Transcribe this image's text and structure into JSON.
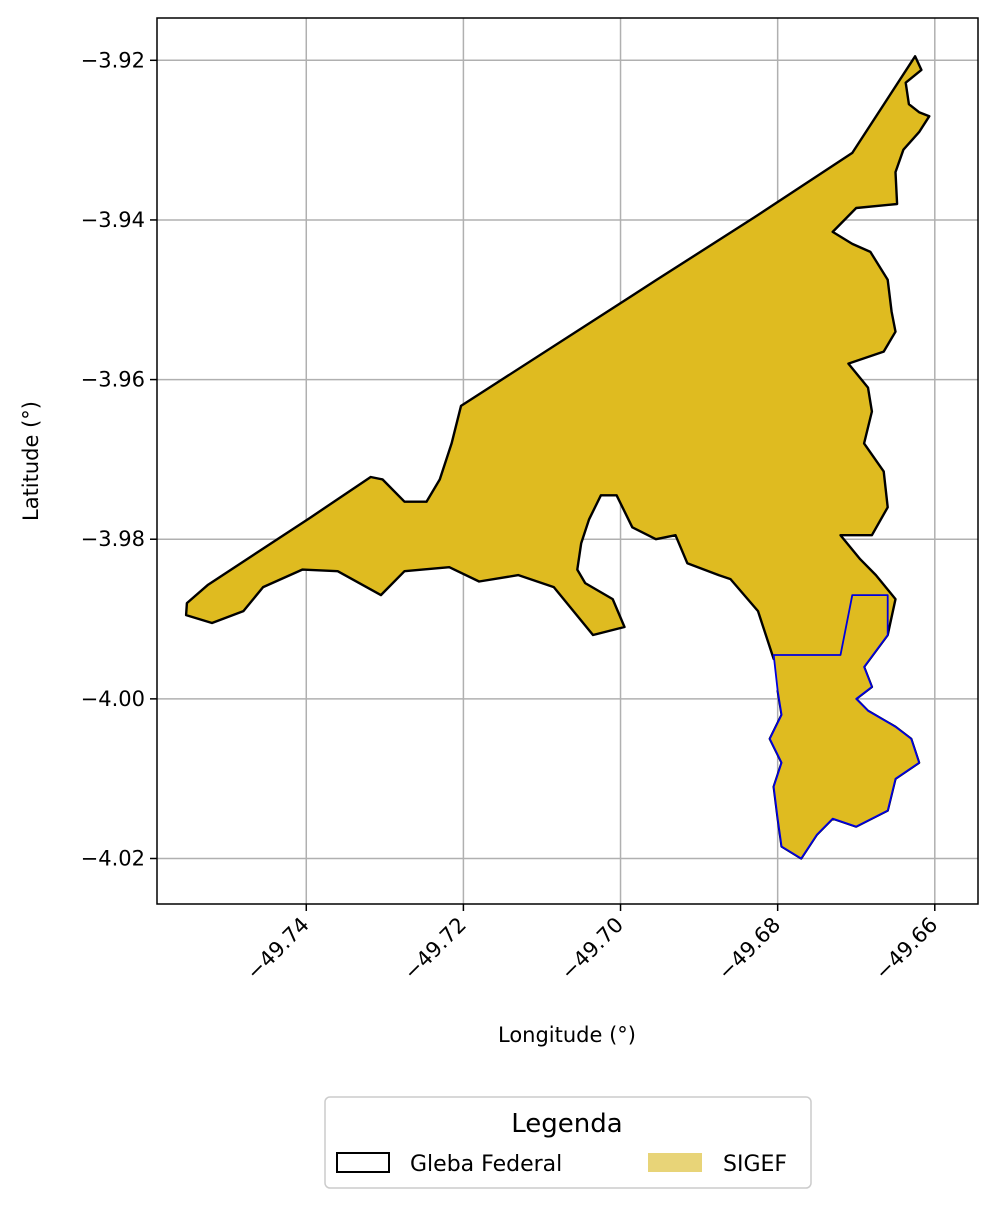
{
  "chart_data": {
    "type": "map",
    "xlabel": "Longitude (°)",
    "ylabel": "Latitude (°)",
    "xlim": [
      -49.759,
      -49.6545
    ],
    "ylim": [
      -4.0257,
      -3.9147
    ],
    "x_ticks": [
      -49.74,
      -49.72,
      -49.7,
      -49.68,
      -49.66
    ],
    "x_tick_labels": [
      "−49.74",
      "−49.72",
      "−49.70",
      "−49.68",
      "−49.66"
    ],
    "y_ticks": [
      -3.92,
      -3.94,
      -3.96,
      -3.98,
      -4.0,
      -4.02
    ],
    "y_tick_labels": [
      "−3.92",
      "−3.94",
      "−3.96",
      "−3.98",
      "−4.00",
      "−4.02"
    ],
    "grid": true,
    "legend": {
      "title": "Legenda",
      "placement": "bottom-center",
      "entries": [
        {
          "label": "Gleba Federal",
          "fill": "none",
          "edge": "#000000"
        },
        {
          "label": "SIGEF",
          "fill": "#e8d478",
          "edge": "none"
        }
      ]
    },
    "layers": [
      {
        "name": "Gleba Federal",
        "fill": "#dfbb20",
        "edge": "#000000",
        "coords": [
          [
            -49.7525,
            -3.9857
          ],
          [
            -49.7395,
            -3.9773
          ],
          [
            -49.7318,
            -3.9722
          ],
          [
            -49.7303,
            -3.9725
          ],
          [
            -49.7275,
            -3.9753
          ],
          [
            -49.7247,
            -3.9753
          ],
          [
            -49.723,
            -3.9725
          ],
          [
            -49.7215,
            -3.968
          ],
          [
            -49.7203,
            -3.9633
          ],
          [
            -49.6954,
            -3.9475
          ],
          [
            -49.683,
            -3.9397
          ],
          [
            -49.6705,
            -3.9316
          ],
          [
            -49.6625,
            -3.9195
          ],
          [
            -49.6617,
            -3.9212
          ],
          [
            -49.6637,
            -3.9228
          ],
          [
            -49.6633,
            -3.9255
          ],
          [
            -49.662,
            -3.9265
          ],
          [
            -49.6607,
            -3.927
          ],
          [
            -49.662,
            -3.929
          ],
          [
            -49.664,
            -3.9312
          ],
          [
            -49.665,
            -3.934
          ],
          [
            -49.6648,
            -3.938
          ],
          [
            -49.67,
            -3.9385
          ],
          [
            -49.673,
            -3.9415
          ],
          [
            -49.6705,
            -3.943
          ],
          [
            -49.6682,
            -3.944
          ],
          [
            -49.666,
            -3.9475
          ],
          [
            -49.6655,
            -3.9515
          ],
          [
            -49.665,
            -3.954
          ],
          [
            -49.6665,
            -3.9565
          ],
          [
            -49.671,
            -3.958
          ],
          [
            -49.6685,
            -3.961
          ],
          [
            -49.668,
            -3.964
          ],
          [
            -49.669,
            -3.968
          ],
          [
            -49.6665,
            -3.9715
          ],
          [
            -49.666,
            -3.976
          ],
          [
            -49.668,
            -3.9795
          ],
          [
            -49.672,
            -3.9795
          ],
          [
            -49.6695,
            -3.9825
          ],
          [
            -49.6675,
            -3.9845
          ],
          [
            -49.665,
            -3.9875
          ],
          [
            -49.666,
            -3.992
          ],
          [
            -49.669,
            -3.996
          ],
          [
            -49.668,
            -3.9985
          ],
          [
            -49.67,
            -4.0
          ],
          [
            -49.6685,
            -4.0015
          ],
          [
            -49.665,
            -4.0035
          ],
          [
            -49.663,
            -4.005
          ],
          [
            -49.662,
            -4.008
          ],
          [
            -49.665,
            -4.01
          ],
          [
            -49.666,
            -4.014
          ],
          [
            -49.67,
            -4.016
          ],
          [
            -49.673,
            -4.015
          ],
          [
            -49.675,
            -4.017
          ],
          [
            -49.677,
            -4.02
          ],
          [
            -49.6795,
            -4.0185
          ],
          [
            -49.68,
            -4.015
          ],
          [
            -49.6805,
            -4.011
          ],
          [
            -49.6795,
            -4.008
          ],
          [
            -49.681,
            -4.005
          ],
          [
            -49.6795,
            -4.002
          ],
          [
            -49.68,
            -3.999
          ],
          [
            -49.677,
            -3.996
          ],
          [
            -49.6805,
            -3.995
          ],
          [
            -49.6825,
            -3.989
          ],
          [
            -49.686,
            -3.985
          ],
          [
            -49.6875,
            -3.9845
          ],
          [
            -49.6915,
            -3.983
          ],
          [
            -49.693,
            -3.9795
          ],
          [
            -49.6955,
            -3.98
          ],
          [
            -49.6985,
            -3.9785
          ],
          [
            -49.7005,
            -3.9745
          ],
          [
            -49.7025,
            -3.9745
          ],
          [
            -49.704,
            -3.9775
          ],
          [
            -49.705,
            -3.9805
          ],
          [
            -49.7055,
            -3.9838
          ],
          [
            -49.7045,
            -3.9855
          ],
          [
            -49.701,
            -3.9875
          ],
          [
            -49.6995,
            -3.991
          ],
          [
            -49.7035,
            -3.992
          ],
          [
            -49.7085,
            -3.986
          ],
          [
            -49.713,
            -3.9845
          ],
          [
            -49.718,
            -3.9853
          ],
          [
            -49.7218,
            -3.9835
          ],
          [
            -49.7252,
            -3.9838
          ],
          [
            -49.7275,
            -3.984
          ],
          [
            -49.7305,
            -3.987
          ],
          [
            -49.736,
            -3.984
          ],
          [
            -49.7405,
            -3.9838
          ],
          [
            -49.7455,
            -3.986
          ],
          [
            -49.748,
            -3.989
          ],
          [
            -49.752,
            -3.9905
          ],
          [
            -49.7553,
            -3.9895
          ],
          [
            -49.7552,
            -3.988
          ],
          [
            -49.7525,
            -3.9857
          ]
        ]
      },
      {
        "name": "SIGEF",
        "fill": "#dfbb20",
        "edge": "#0000dd",
        "coords": [
          [
            -49.6805,
            -3.9945
          ],
          [
            -49.677,
            -3.9945
          ],
          [
            -49.672,
            -3.9945
          ],
          [
            -49.6705,
            -3.987
          ],
          [
            -49.666,
            -3.987
          ],
          [
            -49.666,
            -3.992
          ],
          [
            -49.669,
            -3.996
          ],
          [
            -49.668,
            -3.9985
          ],
          [
            -49.67,
            -4.0
          ],
          [
            -49.6685,
            -4.0015
          ],
          [
            -49.665,
            -4.0035
          ],
          [
            -49.663,
            -4.005
          ],
          [
            -49.662,
            -4.008
          ],
          [
            -49.665,
            -4.01
          ],
          [
            -49.666,
            -4.014
          ],
          [
            -49.67,
            -4.016
          ],
          [
            -49.673,
            -4.015
          ],
          [
            -49.675,
            -4.017
          ],
          [
            -49.677,
            -4.02
          ],
          [
            -49.6795,
            -4.0185
          ],
          [
            -49.68,
            -4.015
          ],
          [
            -49.6805,
            -4.011
          ],
          [
            -49.6795,
            -4.008
          ],
          [
            -49.681,
            -4.005
          ],
          [
            -49.6795,
            -4.002
          ],
          [
            -49.68,
            -3.999
          ],
          [
            -49.6805,
            -3.9945
          ]
        ]
      }
    ]
  }
}
